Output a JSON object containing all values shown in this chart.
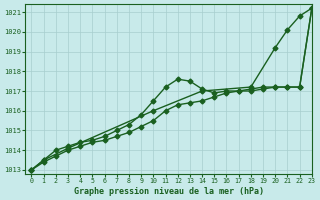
{
  "title": "Graphe pression niveau de la mer (hPa)",
  "background_color": "#c8eaea",
  "plot_bg_color": "#c8eaea",
  "grid_color": "#a8cece",
  "line_color": "#1a6020",
  "xlim": [
    -0.5,
    23
  ],
  "ylim": [
    1012.8,
    1021.4
  ],
  "yticks": [
    1013,
    1014,
    1015,
    1016,
    1017,
    1018,
    1019,
    1020,
    1021
  ],
  "xticks": [
    0,
    1,
    2,
    3,
    4,
    5,
    6,
    7,
    8,
    9,
    10,
    11,
    12,
    13,
    14,
    15,
    16,
    17,
    18,
    19,
    20,
    21,
    22,
    23
  ],
  "series": [
    {
      "x": [
        0,
        1,
        3,
        10,
        14,
        18,
        20,
        21,
        22,
        23
      ],
      "y": [
        1013.0,
        1013.5,
        1014.1,
        1016.0,
        1017.0,
        1017.2,
        1019.2,
        1020.1,
        1020.8,
        1021.2
      ],
      "marker": "D",
      "markersize": 2.5,
      "linewidth": 1.0,
      "linestyle": "-"
    },
    {
      "x": [
        0,
        1,
        2,
        3,
        4,
        5,
        6,
        7,
        8,
        9,
        10,
        11,
        12,
        13,
        14,
        15,
        16,
        17,
        18,
        19,
        20,
        21,
        22,
        23
      ],
      "y": [
        1013.0,
        1013.5,
        1014.0,
        1014.2,
        1014.4,
        1014.5,
        1014.7,
        1015.0,
        1015.3,
        1015.8,
        1016.5,
        1017.2,
        1017.6,
        1017.5,
        1017.1,
        1016.9,
        1017.0,
        1017.0,
        1017.1,
        1017.2,
        1017.2,
        1017.2,
        1017.2,
        1021.2
      ],
      "marker": "D",
      "markersize": 2.5,
      "linewidth": 1.0,
      "linestyle": "-"
    },
    {
      "x": [
        0,
        1,
        2,
        3,
        4,
        5,
        6,
        7,
        8,
        9,
        10,
        11,
        12,
        13,
        14,
        15,
        16,
        17,
        18,
        19,
        20,
        21,
        22,
        23
      ],
      "y": [
        1013.0,
        1013.4,
        1013.7,
        1014.0,
        1014.2,
        1014.4,
        1014.5,
        1014.7,
        1014.9,
        1015.2,
        1015.5,
        1016.0,
        1016.3,
        1016.4,
        1016.5,
        1016.7,
        1016.9,
        1017.0,
        1017.0,
        1017.1,
        1017.2,
        1017.2,
        1017.2,
        1021.2
      ],
      "marker": "D",
      "markersize": 2.5,
      "linewidth": 1.0,
      "linestyle": "-"
    }
  ]
}
